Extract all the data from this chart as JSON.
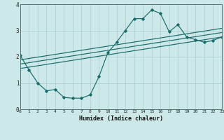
{
  "xlabel": "Humidex (Indice chaleur)",
  "ylabel": "",
  "bg_color": "#cce8e8",
  "line_color": "#1a6b6b",
  "grid_color": "#aacccc",
  "x_data": [
    0,
    1,
    2,
    3,
    4,
    5,
    6,
    7,
    8,
    9,
    10,
    11,
    12,
    13,
    14,
    15,
    16,
    17,
    18,
    19,
    20,
    21,
    22,
    23
  ],
  "y_main": [
    2.05,
    1.5,
    1.0,
    0.7,
    0.75,
    0.45,
    0.42,
    0.42,
    0.55,
    1.25,
    2.15,
    2.55,
    3.0,
    3.45,
    3.45,
    3.78,
    3.65,
    2.95,
    3.22,
    2.75,
    2.65,
    2.55,
    2.62,
    2.75
  ],
  "trend_lines": [
    {
      "x0": 0,
      "y0": 1.55,
      "x1": 23,
      "y1": 2.75
    },
    {
      "x0": 0,
      "y0": 1.72,
      "x1": 23,
      "y1": 2.92
    },
    {
      "x0": 0,
      "y0": 1.88,
      "x1": 23,
      "y1": 3.08
    }
  ],
  "ylim": [
    0,
    4
  ],
  "xlim": [
    0,
    23
  ],
  "yticks": [
    0,
    1,
    2,
    3,
    4
  ],
  "xticks": [
    0,
    1,
    2,
    3,
    4,
    5,
    6,
    7,
    8,
    9,
    10,
    11,
    12,
    13,
    14,
    15,
    16,
    17,
    18,
    19,
    20,
    21,
    22,
    23
  ]
}
